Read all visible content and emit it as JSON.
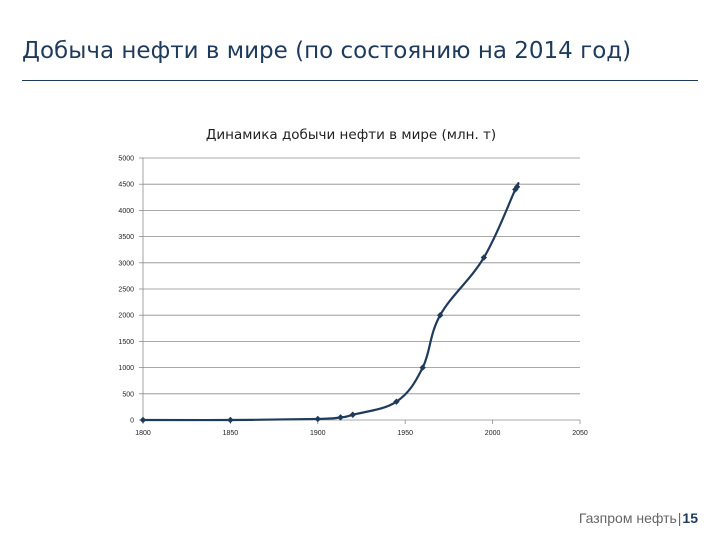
{
  "slide": {
    "title": "Добыча нефти в  мире (по состоянию на 2014 год)"
  },
  "footer": {
    "company": "Газпром нефть",
    "separator": "|",
    "page_number": "15"
  },
  "chart_data": {
    "type": "line",
    "title": "Динамика добычи нефти в мире (млн. т)",
    "xlabel": "",
    "ylabel": "",
    "xlim": [
      1800,
      2050
    ],
    "ylim": [
      0,
      5000
    ],
    "x_ticks": [
      1800,
      1850,
      1900,
      1950,
      2000,
      2050
    ],
    "y_ticks": [
      0,
      500,
      1000,
      1500,
      2000,
      2500,
      3000,
      3500,
      4000,
      4500,
      5000
    ],
    "grid": true,
    "legend": "none",
    "line_color": "#1f3b5c",
    "series": [
      {
        "x": [
          1800,
          1850,
          1900,
          1913,
          1920,
          1945,
          1960,
          1970,
          1995,
          2013,
          2014
        ],
        "y": [
          0,
          0,
          20,
          50,
          100,
          350,
          1000,
          2000,
          3100,
          4400,
          4450
        ]
      }
    ]
  }
}
